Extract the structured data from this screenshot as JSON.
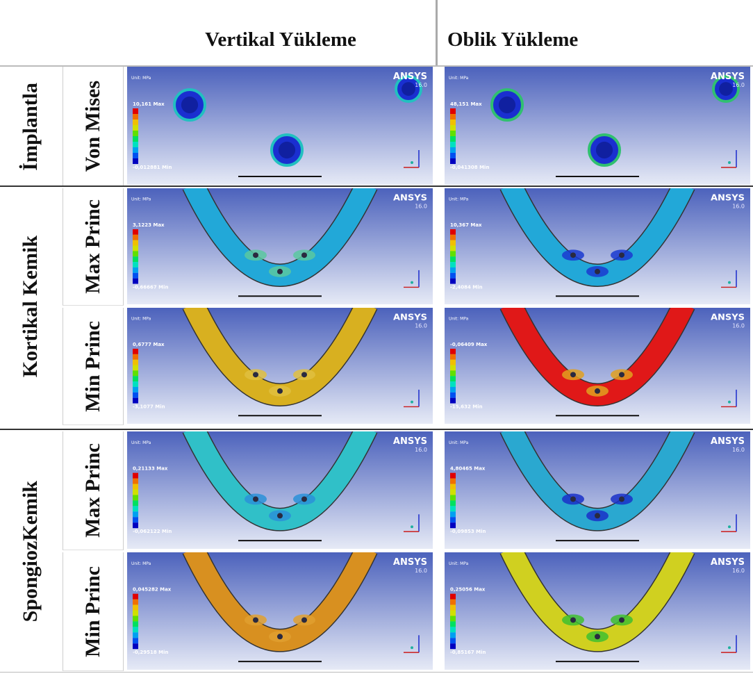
{
  "header": {
    "columns": [
      "Vertikal Yükleme",
      "Oblik Yükleme"
    ]
  },
  "groups": [
    {
      "label": "İmplantla",
      "rows": [
        {
          "label": "Von Mises",
          "cells": [
            {
              "ansys": "ANSYS",
              "version": "16.0",
              "unit": "Unit: MPa",
              "max": "10,161 Max",
              "min": "-0,012881 Min"
            },
            {
              "ansys": "ANSYS",
              "version": "16.0",
              "unit": "Unit: MPa",
              "max": "48,151 Max",
              "min": "-0,041308 Min"
            }
          ]
        }
      ]
    },
    {
      "label": "Kortikal Kemik",
      "rows": [
        {
          "label": "Max Princ",
          "cells": [
            {
              "ansys": "ANSYS",
              "version": "16.0",
              "unit": "Unit: MPa",
              "max": "3,1223 Max",
              "min": "-0,66667 Min"
            },
            {
              "ansys": "ANSYS",
              "version": "16.0",
              "unit": "Unit: MPa",
              "max": "10,367 Max",
              "min": "-2,4084 Min"
            }
          ]
        },
        {
          "label": "Min Princ",
          "cells": [
            {
              "ansys": "ANSYS",
              "version": "16.0",
              "unit": "Unit: MPa",
              "max": "0,6777 Max",
              "min": "-3,1077 Min"
            },
            {
              "ansys": "ANSYS",
              "version": "16.0",
              "unit": "Unit: MPa",
              "max": "-0,06409 Max",
              "min": "-15,632 Min"
            }
          ]
        }
      ]
    },
    {
      "label": "SpongiozKemik",
      "rows": [
        {
          "label": "Max Princ",
          "cells": [
            {
              "ansys": "ANSYS",
              "version": "16.0",
              "unit": "Unit: MPa",
              "max": "0,21133 Max",
              "min": "-0,062122 Min"
            },
            {
              "ansys": "ANSYS",
              "version": "16.0",
              "unit": "Unit: MPa",
              "max": "4,80465 Max",
              "min": "-0,09853 Min"
            }
          ]
        },
        {
          "label": "Min Princ",
          "cells": [
            {
              "ansys": "ANSYS",
              "version": "16.0",
              "unit": "Unit: MPa",
              "max": "0,045282 Max",
              "min": "-0,29518 Min"
            },
            {
              "ansys": "ANSYS",
              "version": "16.0",
              "unit": "Unit: MPa",
              "max": "0,25056 Max",
              "min": "-0,85167 Min"
            }
          ]
        }
      ]
    }
  ]
}
